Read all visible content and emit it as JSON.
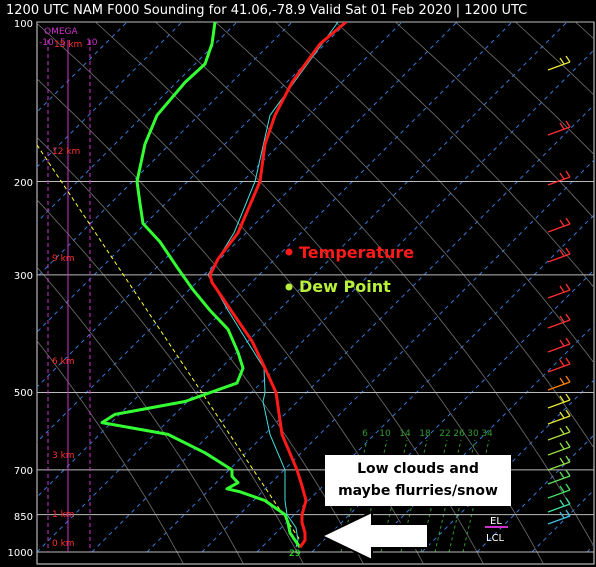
{
  "title": "1200 UTC NAM F000 Sounding for 41.06,-78.9 Valid  Sat 01 Feb 2020 | 1200 UTC",
  "omega_label": "OMEGA",
  "omega_ticks": [
    "-10",
    "5",
    "10"
  ],
  "height_labels": [
    "15 km",
    "12 km",
    "9 km",
    "6 km",
    "3 km",
    "1 km",
    "0 km"
  ],
  "lcl_label": "LCL",
  "el_label": "EL",
  "surface_value": "29",
  "mixing_ratio_labels": [
    "6",
    "10",
    "14",
    "18",
    "22",
    "26",
    "30",
    "34"
  ],
  "annotations": {
    "temperature": "Temperature",
    "dew_point": "Dew Point",
    "callout_line1": "Low clouds and",
    "callout_line2": "maybe flurries/snow"
  },
  "colors": {
    "temperature": "#ff1a1a",
    "dew_point": "#33ff33",
    "virtual_temperature": "#40e0e0",
    "isotherms": "#3a78d8",
    "dry_adiabats": "#707070",
    "mixing_ratio": "#2f9a2f",
    "parcel_path": "#ffff33",
    "omega": "#cc33cc"
  },
  "chart_data": {
    "type": "line",
    "subtype": "skew-T log-P sounding",
    "pressure_levels": [
      1000,
      850,
      700,
      500,
      300,
      200,
      100
    ],
    "ylabel": "",
    "ylim": [
      1050,
      100
    ],
    "y_scale": "log",
    "y_reversed": true,
    "grid": true,
    "series": [
      {
        "name": "Temperature",
        "p": [
          980,
          950,
          920,
          880,
          850,
          800,
          750,
          700,
          600,
          500,
          450,
          400,
          350,
          310,
          300,
          280,
          250,
          200,
          170,
          150,
          130,
          110,
          100
        ],
        "x": [
          300,
          305,
          305,
          302,
          302,
          306,
          302,
          297,
          282,
          276,
          265,
          252,
          231,
          212,
          210,
          218,
          238,
          260,
          265,
          275,
          292,
          320,
          346
        ]
      },
      {
        "name": "Dew Point",
        "p": [
          980,
          950,
          920,
          880,
          850,
          800,
          770,
          760,
          740,
          720,
          700,
          650,
          600,
          570,
          550,
          520,
          480,
          450,
          420,
          380,
          350,
          320,
          290,
          260,
          240,
          220,
          200,
          170,
          150,
          130,
          120,
          110,
          100
        ],
        "x": [
          300,
          295,
          290,
          288,
          285,
          265,
          240,
          227,
          238,
          232,
          232,
          205,
          168,
          102,
          115,
          185,
          237,
          243,
          238,
          228,
          210,
          193,
          177,
          160,
          143,
          140,
          137,
          145,
          157,
          185,
          205,
          212,
          215
        ]
      },
      {
        "p": [
          980,
          950,
          900,
          850,
          800,
          700,
          600,
          520,
          500,
          450,
          400,
          350,
          300,
          250,
          200,
          150,
          100
        ],
        "x": [
          296,
          298,
          296,
          287,
          285,
          285,
          270,
          263,
          265,
          264,
          247,
          228,
          208,
          234,
          255,
          270,
          338
        ]
      }
    ],
    "wind_barbs": "present along right edge, 100-1000 hPa"
  }
}
